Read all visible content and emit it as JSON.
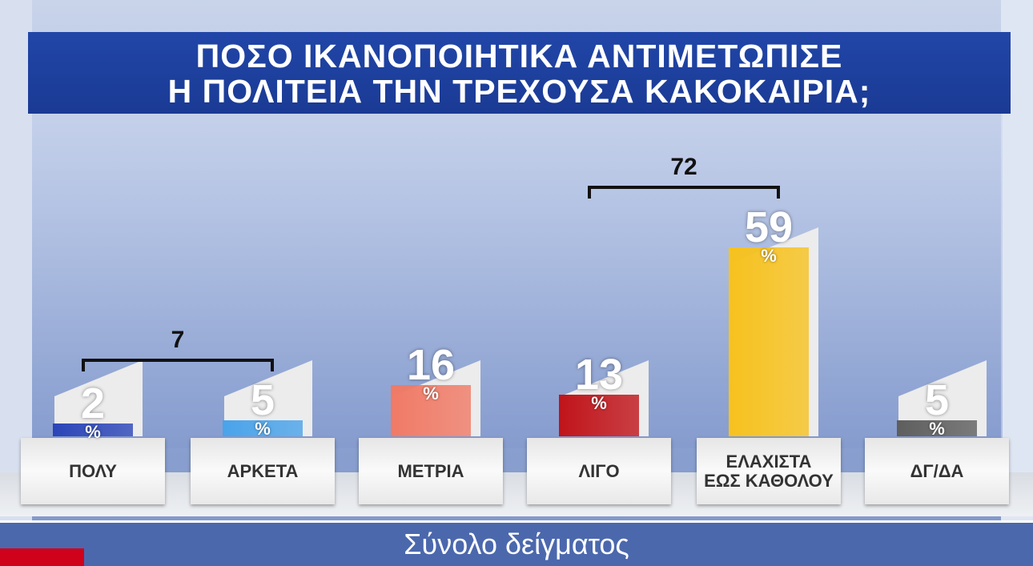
{
  "title": {
    "line1": "ΠΟΣΟ ΙΚΑΝΟΠΟΙΗΤΙΚΑ ΑΝΤΙΜΕΤΩΠΙΣΕ",
    "line2": "Η ΠΟΛΙΤΕΙΑ ΤΗΝ ΤΡΕΧΟΥΣΑ ΚΑΚΟΚΑΙΡΙΑ;"
  },
  "footer": {
    "label": "Σύνολο δείγματος"
  },
  "chart_data": {
    "type": "bar",
    "title": "ΠΟΣΟ ΙΚΑΝΟΠΟΙΗΤΙΚΑ ΑΝΤΙΜΕΤΩΠΙΣΕ Η ΠΟΛΙΤΕΙΑ ΤΗΝ ΤΡΕΧΟΥΣΑ ΚΑΚΟΚΑΙΡΙΑ;",
    "categories": [
      "ΠΟΛΥ",
      "ΑΡΚΕΤΑ",
      "ΜΕΤΡΙΑ",
      "ΛΙΓΟ",
      "ΕΛΑΧΙΣΤΑ\nΕΩΣ ΚΑΘΟΛΟΥ",
      "ΔΓ/ΔΑ"
    ],
    "values": [
      2,
      5,
      16,
      13,
      59,
      5
    ],
    "value_labels": [
      "2",
      "5",
      "16",
      "13",
      "59",
      "5"
    ],
    "unit": "%",
    "colors": [
      "#2a45b8",
      "#4aa3ea",
      "#f07a66",
      "#c0141a",
      "#f7c21e",
      "#5e5e5e"
    ],
    "groups": [
      {
        "label": "7",
        "from": 0,
        "to": 1
      },
      {
        "label": "72",
        "from": 3,
        "to": 4
      }
    ],
    "xlabel": "",
    "ylabel": "",
    "ylim": [
      0,
      60
    ],
    "grid": false,
    "legend": "none"
  }
}
